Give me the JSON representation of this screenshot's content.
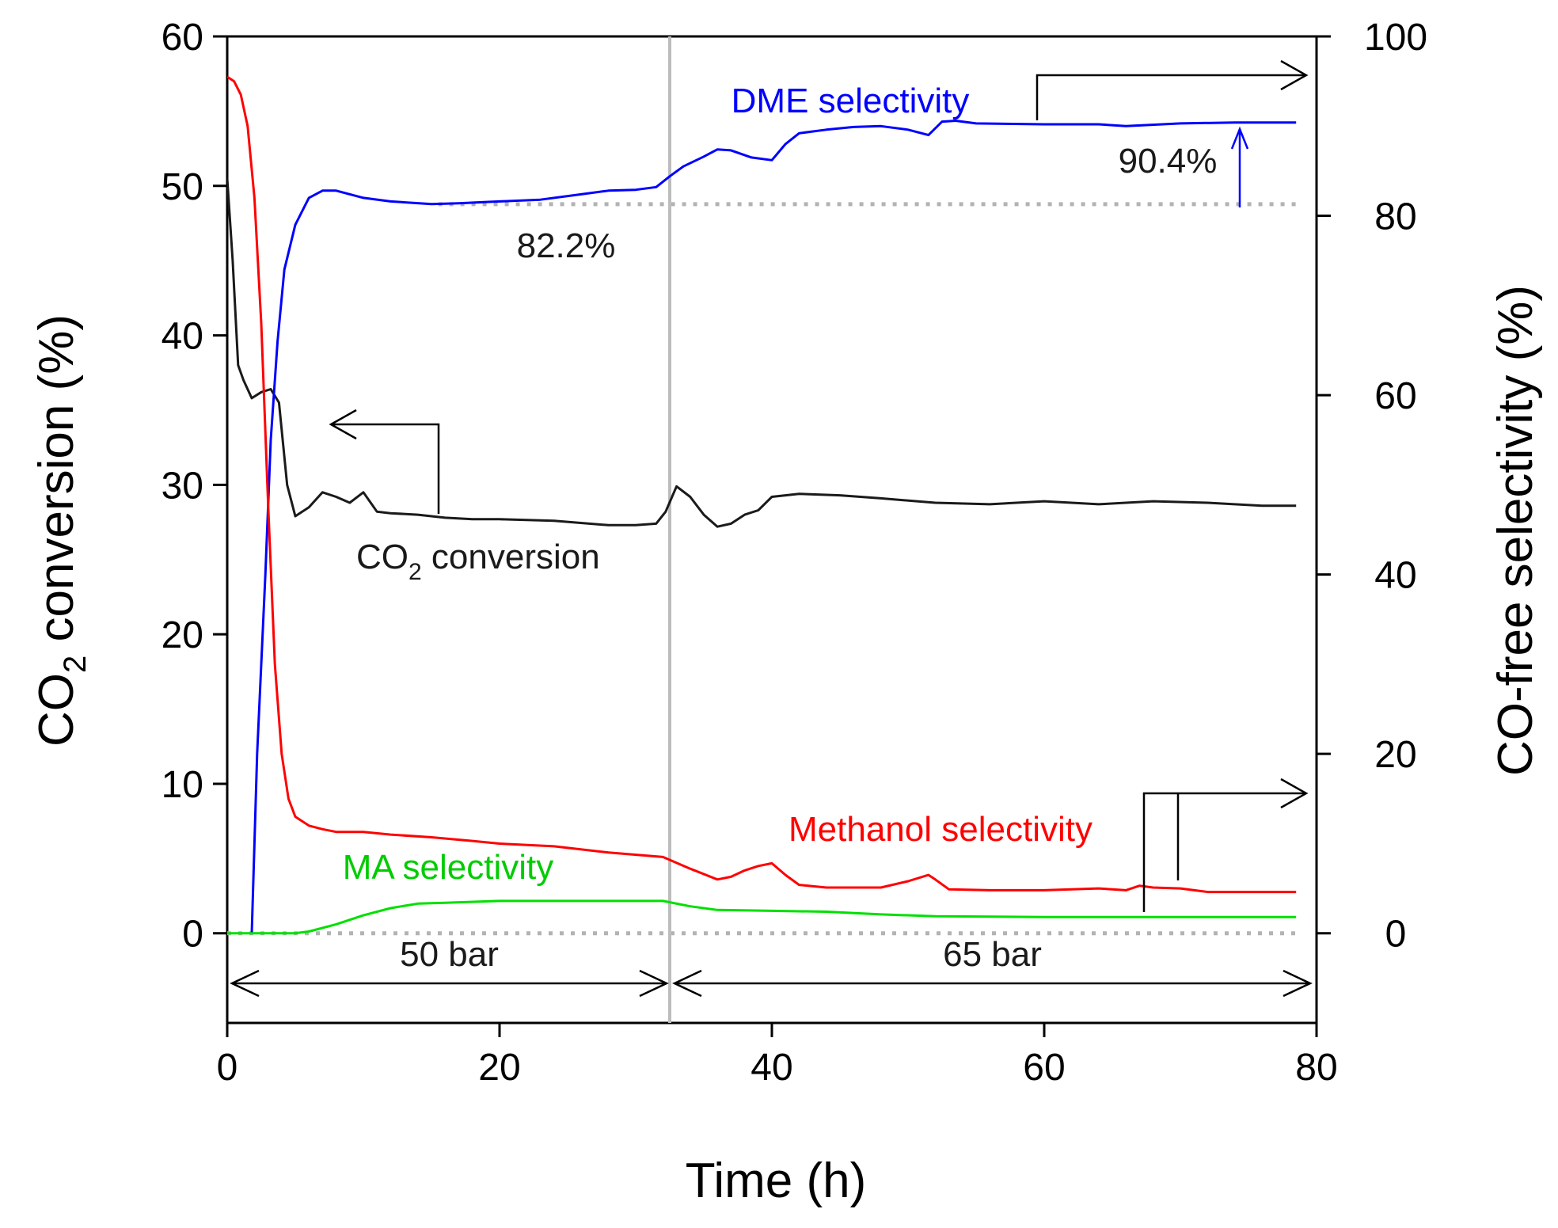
{
  "chart_data": {
    "type": "line",
    "xlabel": "Time (h)",
    "ylabel_left": "CO2 conversion (%)",
    "ylabel_right": "CO-free selectivity (%)",
    "xlim": [
      0,
      80
    ],
    "ylim_left": [
      -6,
      60
    ],
    "ylim_right": [
      -10,
      100
    ],
    "xticks": [
      0,
      20,
      40,
      60,
      80
    ],
    "yticks_left": [
      0,
      10,
      20,
      30,
      40,
      50,
      60
    ],
    "yticks_right": [
      0,
      20,
      40,
      60,
      80,
      100
    ],
    "pressure_change_time": 32.5,
    "regions": [
      {
        "label": "50 bar",
        "x_start": 0,
        "x_end": 32.5
      },
      {
        "label": "65 bar",
        "x_start": 32.5,
        "x_end": 80
      }
    ],
    "reference_lines": [
      {
        "axis": "right",
        "y": 81.3,
        "style": "dotted",
        "color": "#b3b3b3"
      },
      {
        "axis": "right",
        "y": 0,
        "style": "dotted",
        "color": "#b3b3b3"
      }
    ],
    "annotations": {
      "dme_start_pct": "82.2%",
      "dme_end_pct": "90.4%"
    },
    "series": [
      {
        "name": "CO2 conversion",
        "label_main": "CO",
        "label_sub": "2",
        "label_rest": " conversion",
        "axis": "left",
        "color": "#1a1a1a",
        "x": [
          0,
          0.4,
          0.8,
          1.2,
          1.8,
          2.5,
          3.2,
          3.8,
          4.4,
          5,
          6,
          7,
          8,
          9,
          10,
          11,
          12,
          14,
          16,
          18,
          20,
          24,
          28,
          30,
          31.5,
          32.2,
          33,
          34,
          35,
          36,
          37,
          38,
          39,
          40,
          42,
          45,
          48,
          52,
          56,
          60,
          64,
          68,
          72,
          76,
          78.5
        ],
        "values": [
          50.5,
          45,
          38,
          37,
          35.8,
          36.2,
          36.4,
          35.5,
          30,
          27.9,
          28.5,
          29.5,
          29.2,
          28.8,
          29.5,
          28.2,
          28.1,
          28,
          27.8,
          27.7,
          27.7,
          27.6,
          27.3,
          27.3,
          27.4,
          28.2,
          29.9,
          29.2,
          28,
          27.2,
          27.4,
          28,
          28.3,
          29.2,
          29.4,
          29.3,
          29.1,
          28.8,
          28.7,
          28.9,
          28.7,
          28.9,
          28.8,
          28.6,
          28.6
        ]
      },
      {
        "name": "DME selectivity",
        "axis": "right",
        "color": "#0000ff",
        "x": [
          1.8,
          2.2,
          2.8,
          3.2,
          3.7,
          4.2,
          5,
          6,
          7,
          8,
          10,
          12,
          15,
          17,
          20,
          23,
          26,
          28,
          30,
          31.5,
          32.5,
          33.5,
          35,
          36,
          37,
          38.5,
          40,
          41,
          42,
          44,
          46,
          48,
          50,
          51.5,
          52.5,
          53.5,
          55,
          60,
          64,
          66,
          70,
          74,
          78.5
        ],
        "values": [
          0,
          20,
          40,
          55,
          66,
          74,
          79,
          82,
          82.8,
          82.8,
          82,
          81.6,
          81.3,
          81.4,
          81.6,
          81.8,
          82.4,
          82.8,
          82.9,
          83.2,
          84.4,
          85.5,
          86.6,
          87.4,
          87.3,
          86.5,
          86.2,
          88,
          89.2,
          89.6,
          89.9,
          90,
          89.6,
          89,
          90.5,
          90.6,
          90.3,
          90.2,
          90.2,
          90,
          90.3,
          90.4,
          90.4
        ]
      },
      {
        "name": "Methanol selectivity",
        "axis": "right",
        "color": "#ff0000",
        "x": [
          0,
          0.5,
          1,
          1.5,
          2,
          2.5,
          3,
          3.5,
          4,
          4.5,
          5,
          6,
          7,
          8,
          10,
          12,
          15,
          18,
          20,
          24,
          28,
          32,
          34,
          36,
          37,
          38,
          39,
          40,
          41,
          42,
          44,
          48,
          50,
          51.5,
          52,
          53,
          56,
          60,
          64,
          66,
          67,
          68,
          70,
          72,
          76,
          78.5
        ],
        "values": [
          95.5,
          95,
          93.5,
          90,
          82,
          68,
          48,
          30,
          20,
          15,
          13,
          12,
          11.6,
          11.3,
          11.3,
          11,
          10.7,
          10.3,
          10,
          9.7,
          9,
          8.5,
          7.2,
          6,
          6.3,
          7,
          7.5,
          7.8,
          6.5,
          5.4,
          5.1,
          5.1,
          5.8,
          6.5,
          6,
          4.9,
          4.8,
          4.8,
          5,
          4.8,
          5.3,
          5.1,
          5,
          4.6,
          4.6,
          4.6
        ]
      },
      {
        "name": "MA selectivity",
        "axis": "right",
        "color": "#00e000",
        "x": [
          0,
          3,
          5,
          6,
          8,
          10,
          12,
          14,
          16,
          20,
          24,
          28,
          32,
          34,
          36,
          40,
          44,
          48,
          52,
          60,
          70,
          78.5
        ],
        "values": [
          0,
          0,
          0,
          0.2,
          1,
          2,
          2.8,
          3.3,
          3.4,
          3.6,
          3.6,
          3.6,
          3.6,
          3,
          2.6,
          2.5,
          2.4,
          2.1,
          1.9,
          1.8,
          1.8,
          1.8
        ]
      }
    ]
  }
}
